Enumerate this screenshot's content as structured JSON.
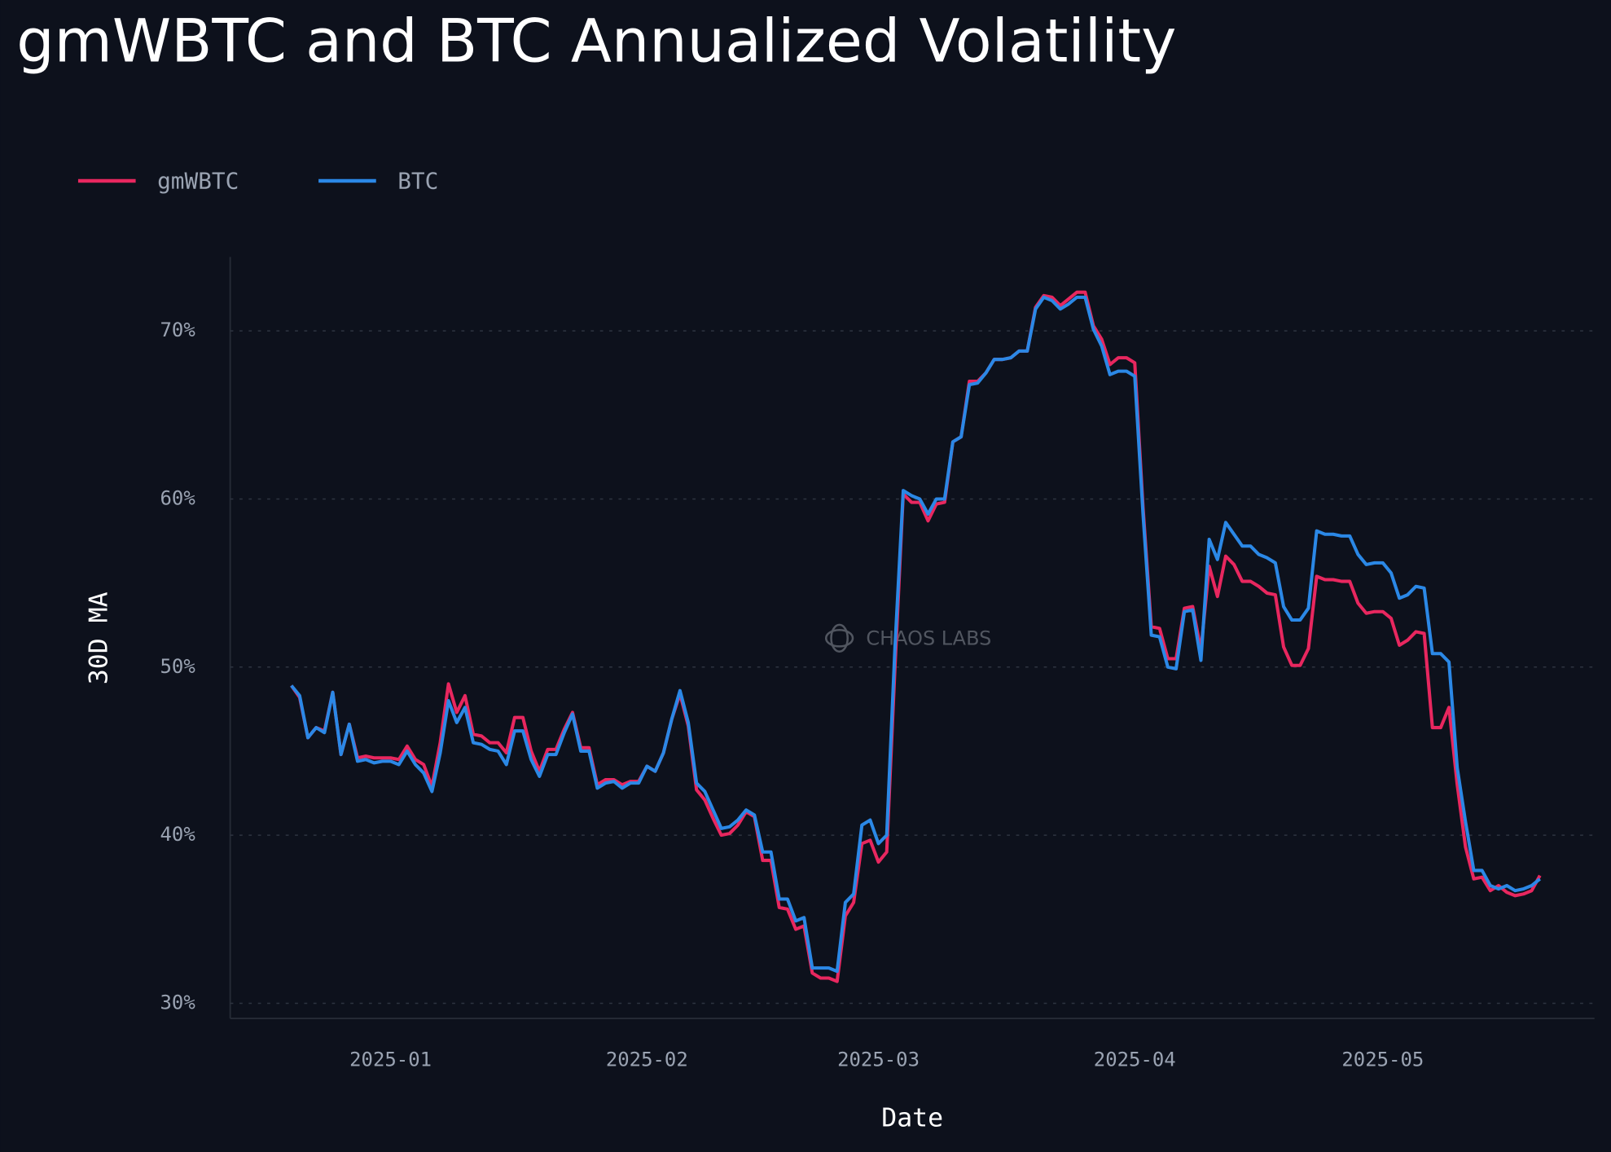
{
  "chart_data": {
    "type": "line",
    "title": "gmWBTC and BTC Annualized Volatility",
    "xlabel": "Date",
    "ylabel": "30D MA",
    "watermark": "CHAOS LABS",
    "x": [
      -12,
      -11,
      -10,
      -9,
      -8,
      -7,
      -6,
      -5,
      -4,
      -3,
      -2,
      -1,
      0,
      1,
      2,
      3,
      4,
      5,
      6,
      7,
      8,
      9,
      10,
      11,
      12,
      13,
      14,
      15,
      16,
      17,
      18,
      19,
      20,
      21,
      22,
      23,
      24,
      25,
      26,
      27,
      28,
      29,
      30,
      31,
      32,
      33,
      34,
      35,
      36,
      37,
      38,
      39,
      40,
      41,
      42,
      43,
      44,
      45,
      46,
      47,
      48,
      49,
      50,
      51,
      52,
      53,
      54,
      55,
      56,
      57,
      58,
      59,
      60,
      61,
      62,
      63,
      64,
      65,
      66,
      67,
      68,
      69,
      70,
      71,
      72,
      73,
      74,
      75,
      76,
      77,
      78,
      79,
      80,
      81,
      82,
      83,
      84,
      85,
      86,
      87,
      88,
      89,
      90,
      91,
      92,
      93,
      94,
      95,
      96,
      97,
      98,
      99,
      100,
      101,
      102,
      103,
      104,
      105,
      106,
      107,
      108,
      109,
      110,
      111,
      112,
      113,
      114,
      115,
      116,
      117,
      118,
      119,
      120,
      121,
      122,
      123,
      124,
      125,
      126,
      127,
      128,
      129,
      130,
      131,
      132,
      133,
      134,
      135,
      136,
      137,
      138,
      139
    ],
    "series": [
      {
        "name": "gmWBTC",
        "color": "#e8275f",
        "values": [
          48.9,
          48.2,
          45.8,
          46.4,
          46.2,
          48.5,
          44.8,
          46.6,
          44.6,
          44.7,
          44.6,
          44.6,
          44.6,
          44.5,
          45.3,
          44.5,
          44.2,
          42.9,
          45.5,
          49.0,
          47.3,
          48.3,
          46.0,
          45.9,
          45.5,
          45.5,
          44.9,
          47.0,
          47.0,
          45.0,
          43.8,
          45.1,
          45.1,
          46.3,
          47.3,
          45.2,
          45.2,
          43.0,
          43.3,
          43.3,
          43.0,
          43.2,
          43.2,
          44.1,
          43.8,
          44.9,
          46.9,
          48.4,
          46.5,
          42.7,
          42.1,
          41.0,
          40.0,
          40.1,
          40.6,
          41.4,
          41.1,
          38.5,
          38.5,
          35.7,
          35.6,
          34.4,
          34.6,
          31.8,
          31.5,
          31.5,
          31.3,
          35.2,
          36.0,
          39.5,
          39.7,
          38.4,
          39.0,
          50.0,
          60.3,
          59.8,
          59.8,
          58.7,
          59.7,
          59.8,
          63.4,
          63.7,
          67.0,
          67.0,
          67.5,
          68.3,
          68.3,
          68.4,
          68.8,
          68.8,
          71.4,
          72.1,
          72.0,
          71.5,
          71.9,
          72.3,
          72.3,
          70.3,
          69.5,
          68.0,
          68.4,
          68.4,
          68.1,
          59.5,
          52.4,
          52.3,
          50.5,
          50.5,
          53.5,
          53.6,
          51.0,
          56.0,
          54.2,
          56.6,
          56.1,
          55.1,
          55.1,
          54.8,
          54.4,
          54.3,
          51.2,
          50.1,
          50.1,
          51.1,
          55.4,
          55.2,
          55.2,
          55.1,
          55.1,
          53.8,
          53.2,
          53.3,
          53.3,
          52.9,
          51.3,
          51.6,
          52.1,
          52.0,
          46.4,
          46.4,
          47.6,
          43.0,
          39.3,
          37.4,
          37.5,
          36.7,
          37.0,
          36.6,
          36.4,
          36.5,
          36.7,
          37.6
        ]
      },
      {
        "name": "BTC",
        "color": "#2b88e6",
        "values": [
          48.9,
          48.3,
          45.8,
          46.4,
          46.1,
          48.5,
          44.8,
          46.6,
          44.4,
          44.5,
          44.3,
          44.4,
          44.4,
          44.2,
          45.0,
          44.2,
          43.7,
          42.6,
          44.9,
          48.0,
          46.7,
          47.6,
          45.5,
          45.4,
          45.1,
          45.0,
          44.2,
          46.2,
          46.2,
          44.5,
          43.5,
          44.8,
          44.8,
          46.1,
          47.2,
          45.0,
          45.0,
          42.8,
          43.1,
          43.2,
          42.8,
          43.1,
          43.1,
          44.1,
          43.8,
          44.9,
          46.9,
          48.6,
          46.7,
          43.1,
          42.6,
          41.5,
          40.4,
          40.5,
          40.9,
          41.5,
          41.2,
          39.0,
          39.0,
          36.2,
          36.2,
          34.9,
          35.1,
          32.1,
          32.1,
          32.1,
          31.9,
          36.0,
          36.5,
          40.6,
          40.9,
          39.5,
          40.0,
          51.2,
          60.5,
          60.2,
          60.0,
          59.1,
          60.0,
          60.0,
          63.4,
          63.7,
          66.8,
          66.9,
          67.5,
          68.3,
          68.3,
          68.4,
          68.8,
          68.8,
          71.3,
          72.0,
          71.8,
          71.3,
          71.6,
          72.0,
          72.0,
          70.1,
          69.1,
          67.4,
          67.6,
          67.6,
          67.3,
          59.1,
          51.9,
          51.8,
          50.0,
          49.9,
          53.3,
          53.4,
          50.4,
          57.6,
          56.4,
          58.6,
          57.9,
          57.2,
          57.2,
          56.7,
          56.5,
          56.2,
          53.6,
          52.8,
          52.8,
          53.5,
          58.1,
          57.9,
          57.9,
          57.8,
          57.8,
          56.7,
          56.1,
          56.2,
          56.2,
          55.6,
          54.1,
          54.3,
          54.8,
          54.7,
          50.8,
          50.8,
          50.3,
          44.0,
          40.8,
          37.9,
          37.9,
          37.0,
          36.8,
          37.0,
          36.7,
          36.8,
          37.0,
          37.4
        ]
      }
    ],
    "xlim": [
      -19.4,
      145.6
    ],
    "xticks": [
      {
        "value": 0,
        "label": "2025-01"
      },
      {
        "value": 31,
        "label": "2025-02"
      },
      {
        "value": 59,
        "label": "2025-03"
      },
      {
        "value": 90,
        "label": "2025-04"
      },
      {
        "value": 120,
        "label": "2025-05"
      }
    ],
    "ylim": [
      29.1,
      74.4
    ],
    "yticks": [
      {
        "value": 30,
        "label": "30%"
      },
      {
        "value": 40,
        "label": "40%"
      },
      {
        "value": 50,
        "label": "50%"
      },
      {
        "value": 60,
        "label": "60%"
      },
      {
        "value": 70,
        "label": "70%"
      }
    ],
    "grid": true,
    "legend": "top-left"
  }
}
